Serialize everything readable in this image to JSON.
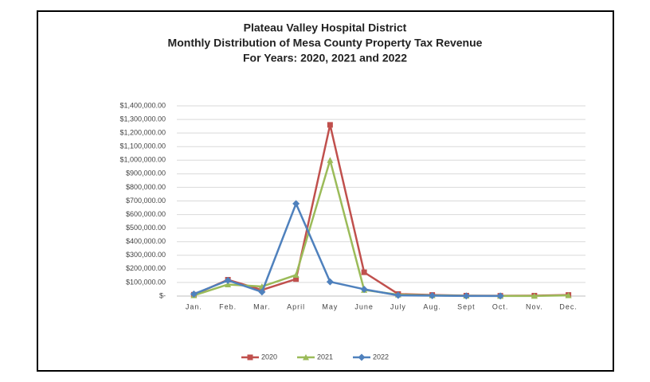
{
  "chart_data": {
    "type": "line",
    "title": [
      "Plateau Valley Hospital District",
      "Monthly Distribution of Mesa County Property Tax Revenue",
      "For Years:  2020, 2021 and 2022"
    ],
    "categories": [
      "Jan.",
      "Feb.",
      "Mar.",
      "April",
      "May",
      "June",
      "July",
      "Aug.",
      "Sept",
      "Oct.",
      "Nov.",
      "Dec."
    ],
    "series": [
      {
        "name": "2020",
        "color": "#c0504d",
        "marker": "square",
        "values": [
          10000,
          120000,
          45000,
          125000,
          1260000,
          175000,
          15000,
          8000,
          3000,
          2000,
          3000,
          8000
        ]
      },
      {
        "name": "2021",
        "color": "#9bbb59",
        "marker": "triangle",
        "values": [
          5000,
          85000,
          70000,
          155000,
          1000000,
          45000,
          10000,
          5000,
          2000,
          1000,
          1000,
          5000
        ]
      },
      {
        "name": "2022",
        "color": "#4f81bd",
        "marker": "diamond",
        "values": [
          15000,
          115000,
          30000,
          680000,
          105000,
          50000,
          5000,
          3000,
          1000,
          1000,
          null,
          null
        ]
      }
    ],
    "ylim": [
      0,
      1400000
    ],
    "yticks": [
      {
        "value": 0,
        "label": "$-"
      },
      {
        "value": 100000,
        "label": "$100,000.00"
      },
      {
        "value": 200000,
        "label": "$200,000.00"
      },
      {
        "value": 300000,
        "label": "$300,000.00"
      },
      {
        "value": 400000,
        "label": "$400,000.00"
      },
      {
        "value": 500000,
        "label": "$500,000.00"
      },
      {
        "value": 600000,
        "label": "$600,000.00"
      },
      {
        "value": 700000,
        "label": "$700,000.00"
      },
      {
        "value": 800000,
        "label": "$800,000.00"
      },
      {
        "value": 900000,
        "label": "$900,000.00"
      },
      {
        "value": 1000000,
        "label": "$1,000,000.00"
      },
      {
        "value": 1100000,
        "label": "$1,100,000.00"
      },
      {
        "value": 1200000,
        "label": "$1,200,000.00"
      },
      {
        "value": 1300000,
        "label": "$1,300,000.00"
      },
      {
        "value": 1400000,
        "label": "$1,400,000.00"
      }
    ],
    "grid": true,
    "legend": "bottom"
  }
}
